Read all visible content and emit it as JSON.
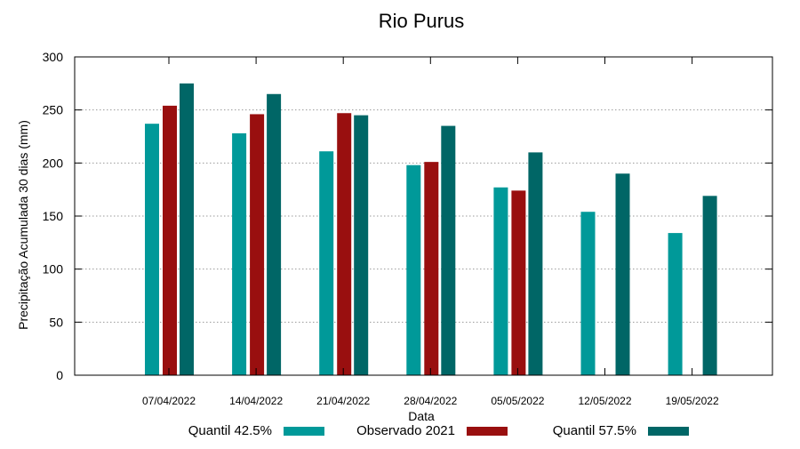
{
  "chart_data": {
    "type": "bar",
    "title": "Rio Purus",
    "xlabel": "Data",
    "ylabel": "Precipitação Acumulada 30 dias (mm)",
    "ylim": [
      0,
      300
    ],
    "yticks": [
      0,
      50,
      100,
      150,
      200,
      250,
      300
    ],
    "grid": true,
    "legend_position": "bottom",
    "categories": [
      "07/04/2022",
      "14/04/2022",
      "21/04/2022",
      "28/04/2022",
      "05/05/2022",
      "12/05/2022",
      "19/05/2022"
    ],
    "series": [
      {
        "name": "Quantil 42.5%",
        "color": "#009999",
        "values": [
          237,
          228,
          211,
          198,
          177,
          154,
          134
        ]
      },
      {
        "name": "Observado 2021",
        "color": "#990f0f",
        "values": [
          254,
          246,
          247,
          201,
          174,
          null,
          null
        ]
      },
      {
        "name": "Quantil 57.5%",
        "color": "#006666",
        "values": [
          275,
          265,
          245,
          235,
          210,
          190,
          169
        ]
      }
    ]
  }
}
